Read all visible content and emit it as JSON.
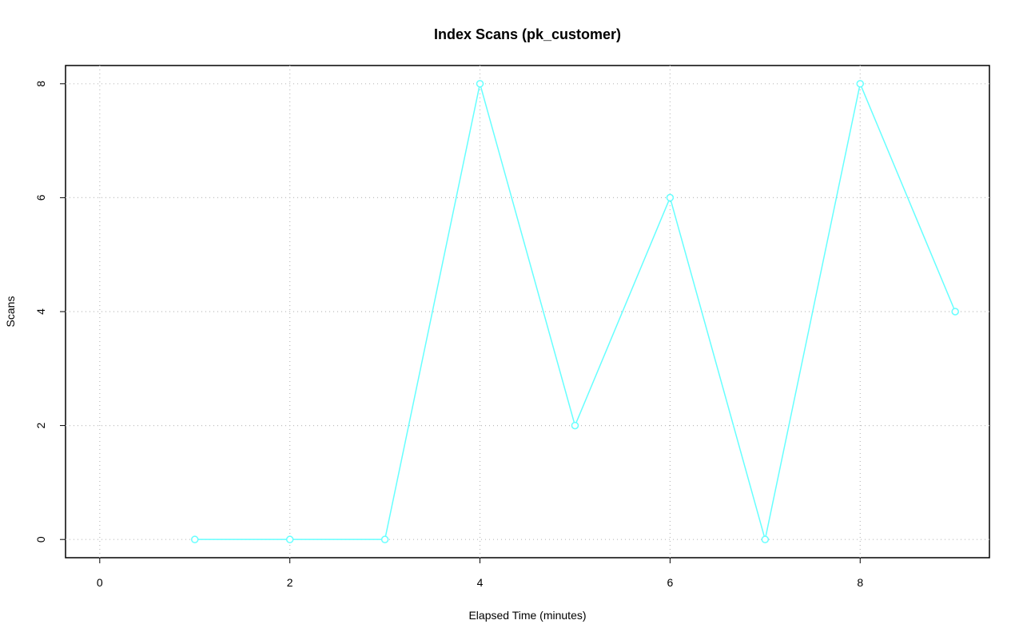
{
  "chart_data": {
    "type": "line",
    "title": "Index Scans (pk_customer)",
    "xlabel": "Elapsed Time (minutes)",
    "ylabel": "Scans",
    "x": [
      1,
      2,
      3,
      4,
      5,
      6,
      7,
      8,
      9
    ],
    "series": [
      {
        "color": "#66ffff",
        "values": [
          0,
          0,
          0,
          8,
          2,
          6,
          0,
          8,
          4
        ]
      }
    ],
    "xlim": [
      -0.36,
      9.36
    ],
    "ylim": [
      -0.32,
      8.32
    ],
    "xticks": [
      0,
      2,
      4,
      6,
      8
    ],
    "yticks": [
      0,
      2,
      4,
      6,
      8
    ],
    "grid": true
  }
}
